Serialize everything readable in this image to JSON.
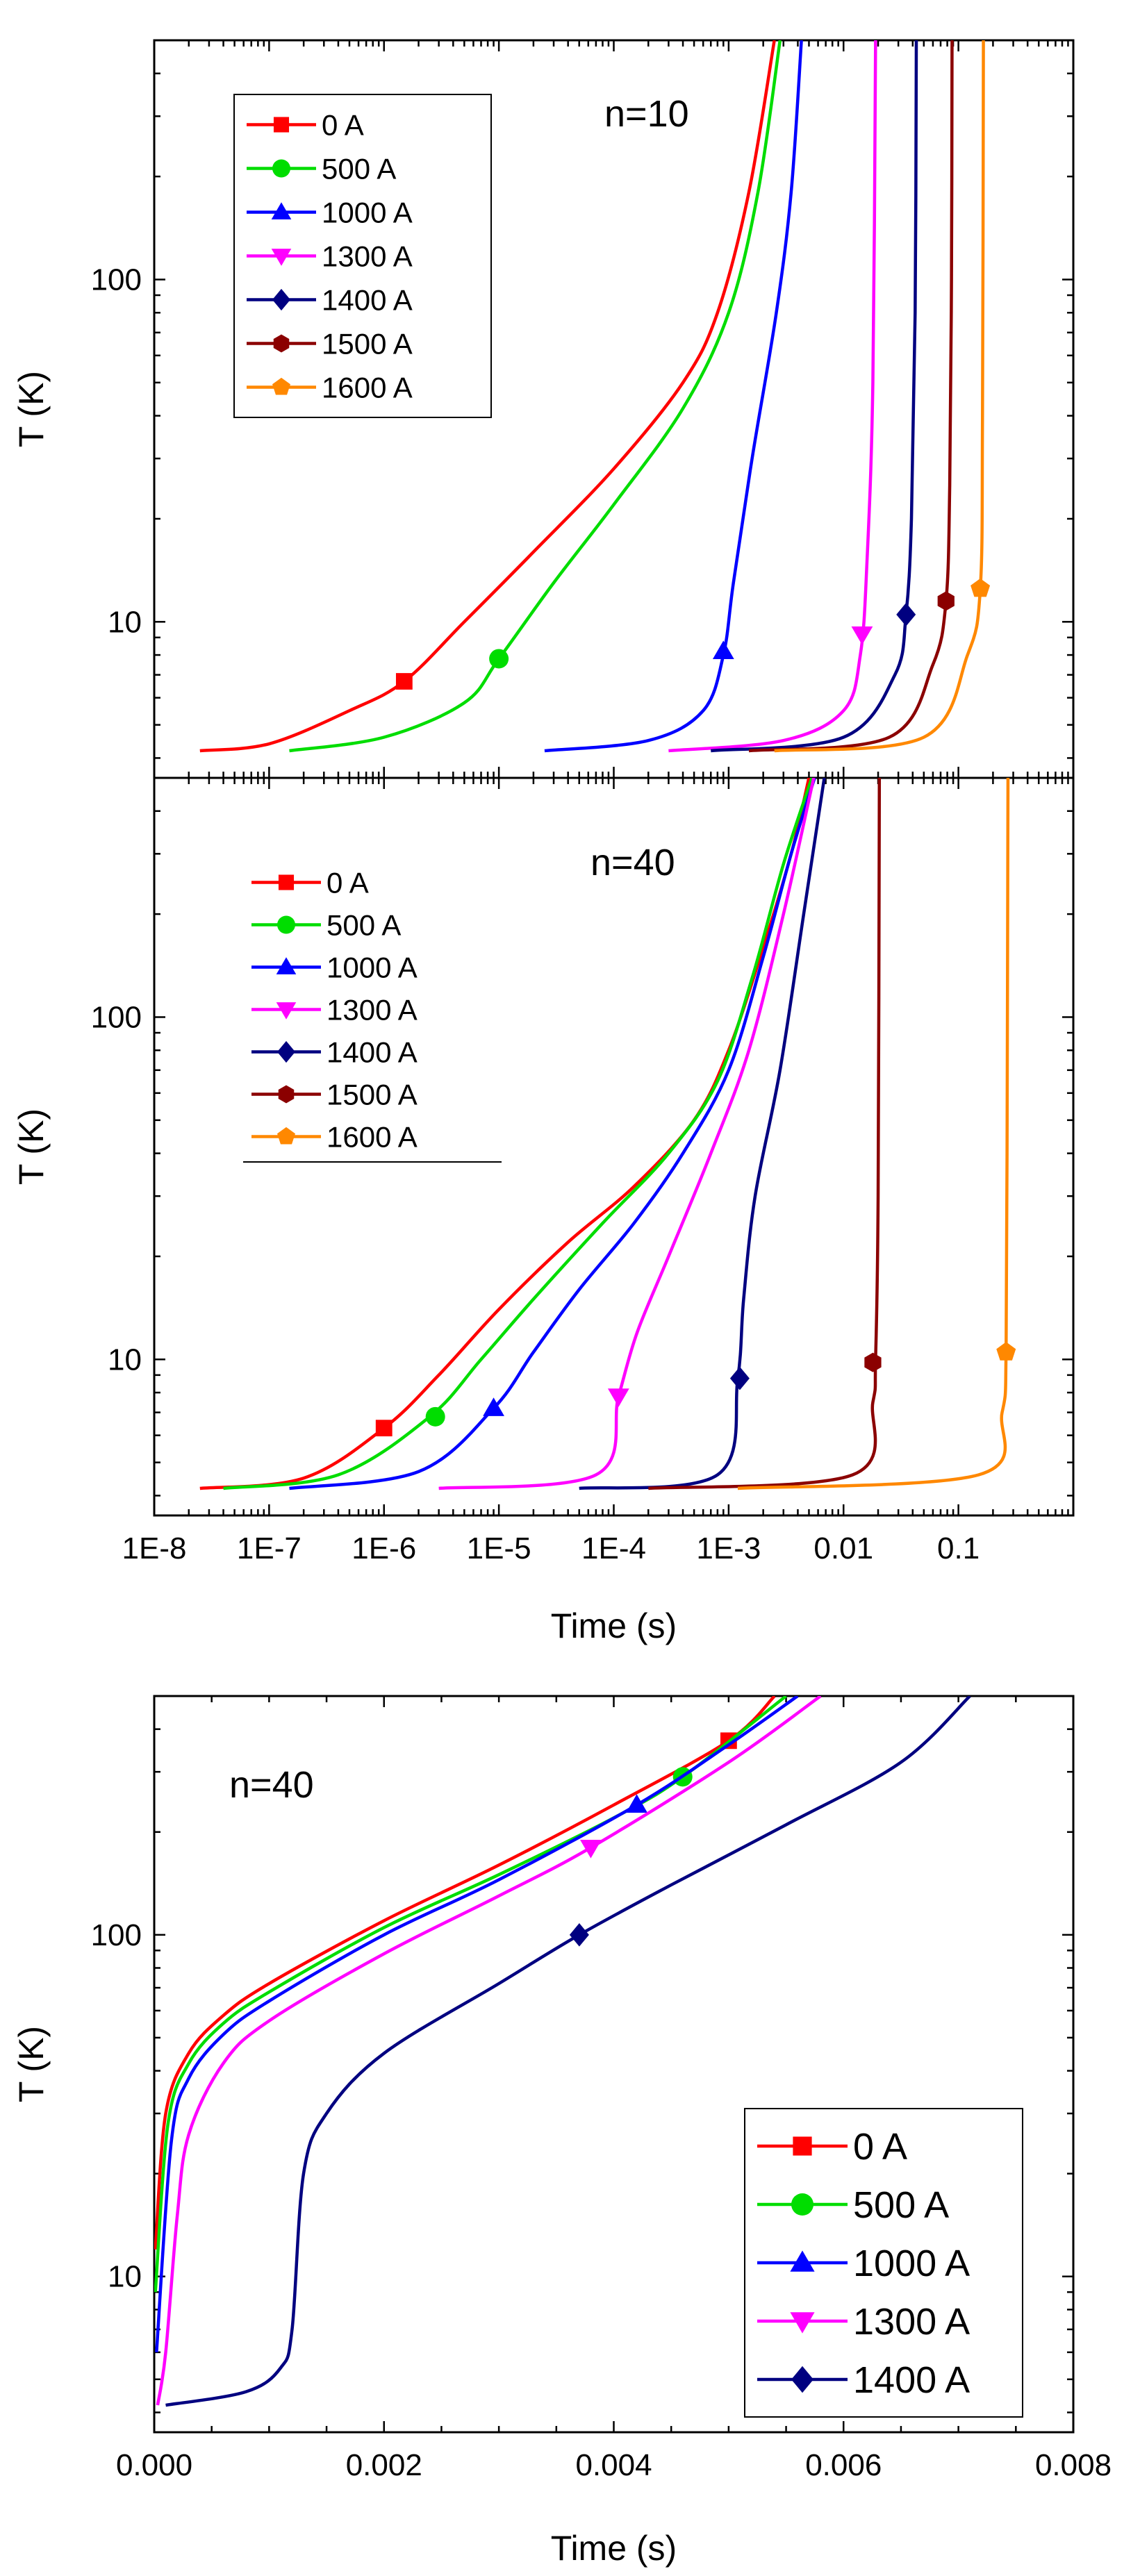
{
  "chart_data": [
    {
      "type": "line",
      "title": "",
      "annotation": "n=10",
      "xlabel": "",
      "ylabel": "T (K)",
      "xscale": "log",
      "yscale": "log",
      "xlim": [
        1e-08,
        1
      ],
      "ylim": [
        3.5,
        500
      ],
      "yticks": [
        {
          "v": 10,
          "label": "10"
        },
        {
          "v": 100,
          "label": "100"
        }
      ],
      "legend_position": "top-left",
      "series": [
        {
          "name": "0 A",
          "color": "#ff0000",
          "marker": "square",
          "points": [
            [
              2.5e-08,
              4.2
            ],
            [
              1e-07,
              4.4
            ],
            [
              5e-07,
              5.5
            ],
            [
              1.5e-06,
              6.7
            ],
            [
              5e-06,
              10
            ],
            [
              2e-05,
              16
            ],
            [
              0.0001,
              28
            ],
            [
              0.0004,
              50
            ],
            [
              0.0008,
              80
            ],
            [
              0.0015,
              180
            ],
            [
              0.0025,
              500
            ]
          ],
          "marker_at": [
            1.5e-06,
            6.7
          ]
        },
        {
          "name": "500 A",
          "color": "#00dd00",
          "marker": "circle",
          "points": [
            [
              1.5e-07,
              4.2
            ],
            [
              1e-06,
              4.6
            ],
            [
              5e-06,
              5.8
            ],
            [
              1e-05,
              7.8
            ],
            [
              3e-05,
              13
            ],
            [
              0.0001,
              22
            ],
            [
              0.0004,
              42
            ],
            [
              0.001,
              80
            ],
            [
              0.0018,
              180
            ],
            [
              0.0028,
              500
            ]
          ],
          "marker_at": [
            1e-05,
            7.8
          ]
        },
        {
          "name": "1000 A",
          "color": "#0000ff",
          "marker": "triangle-up",
          "points": [
            [
              2.5e-05,
              4.2
            ],
            [
              0.0002,
              4.5
            ],
            [
              0.0006,
              5.5
            ],
            [
              0.0009,
              8
            ],
            [
              0.0011,
              13
            ],
            [
              0.0016,
              30
            ],
            [
              0.0026,
              80
            ],
            [
              0.0035,
              180
            ],
            [
              0.0043,
              500
            ]
          ],
          "marker_at": [
            0.0009,
            8.2
          ]
        },
        {
          "name": "1300 A",
          "color": "#ff00ff",
          "marker": "triangle-down",
          "points": [
            [
              0.0003,
              4.2
            ],
            [
              0.003,
              4.5
            ],
            [
              0.01,
              5.5
            ],
            [
              0.014,
              8
            ],
            [
              0.016,
              15
            ],
            [
              0.018,
              50
            ],
            [
              0.019,
              500
            ]
          ],
          "marker_at": [
            0.0145,
            9.2
          ]
        },
        {
          "name": "1400 A",
          "color": "#000080",
          "marker": "diamond",
          "points": [
            [
              0.0007,
              4.2
            ],
            [
              0.01,
              4.6
            ],
            [
              0.028,
              7
            ],
            [
              0.035,
              10.5
            ],
            [
              0.039,
              20
            ],
            [
              0.042,
              80
            ],
            [
              0.043,
              500
            ]
          ],
          "marker_at": [
            0.035,
            10.5
          ]
        },
        {
          "name": "1500 A",
          "color": "#8b0000",
          "marker": "hexagon",
          "points": [
            [
              0.0015,
              4.2
            ],
            [
              0.025,
              4.6
            ],
            [
              0.06,
              7.5
            ],
            [
              0.078,
              11.5
            ],
            [
              0.084,
              25
            ],
            [
              0.087,
              100
            ],
            [
              0.088,
              500
            ]
          ],
          "marker_at": [
            0.078,
            11.5
          ]
        },
        {
          "name": "1600 A",
          "color": "#ff8800",
          "marker": "pentagon",
          "points": [
            [
              0.0025,
              4.2
            ],
            [
              0.05,
              4.6
            ],
            [
              0.12,
              8
            ],
            [
              0.155,
              12.5
            ],
            [
              0.162,
              40
            ],
            [
              0.165,
              500
            ]
          ],
          "marker_at": [
            0.155,
            12.5
          ]
        }
      ]
    },
    {
      "type": "line",
      "title": "",
      "annotation": "n=40",
      "xlabel": "Time (s)",
      "ylabel": "T (K)",
      "xscale": "log",
      "yscale": "log",
      "xlim": [
        1e-08,
        1
      ],
      "ylim": [
        3.5,
        500
      ],
      "xticks": [
        {
          "v": 1e-08,
          "label": "1E-8"
        },
        {
          "v": 1e-07,
          "label": "1E-7"
        },
        {
          "v": 1e-06,
          "label": "1E-6"
        },
        {
          "v": 1e-05,
          "label": "1E-5"
        },
        {
          "v": 0.0001,
          "label": "1E-4"
        },
        {
          "v": 0.001,
          "label": "1E-3"
        },
        {
          "v": 0.01,
          "label": "0.01"
        },
        {
          "v": 0.1,
          "label": "0.1"
        }
      ],
      "yticks": [
        {
          "v": 10,
          "label": "10"
        },
        {
          "v": 100,
          "label": "100"
        }
      ],
      "legend_position": "top-left",
      "series": [
        {
          "name": "0 A",
          "color": "#ff0000",
          "marker": "square",
          "points": [
            [
              2.5e-08,
              4.2
            ],
            [
              2e-07,
              4.5
            ],
            [
              1e-06,
              6.3
            ],
            [
              3e-06,
              9
            ],
            [
              1e-05,
              14
            ],
            [
              4e-05,
              22
            ],
            [
              0.00015,
              32
            ],
            [
              0.0005,
              50
            ],
            [
              0.001,
              80
            ],
            [
              0.002,
              160
            ],
            [
              0.0035,
              300
            ],
            [
              0.005,
              500
            ]
          ],
          "marker_at": [
            1e-06,
            6.3
          ]
        },
        {
          "name": "500 A",
          "color": "#00dd00",
          "marker": "circle",
          "points": [
            [
              4e-08,
              4.2
            ],
            [
              4e-07,
              4.6
            ],
            [
              2.5e-06,
              6.8
            ],
            [
              7e-06,
              10
            ],
            [
              2e-05,
              15
            ],
            [
              8e-05,
              25
            ],
            [
              0.0003,
              40
            ],
            [
              0.0008,
              65
            ],
            [
              0.0016,
              130
            ],
            [
              0.003,
              280
            ],
            [
              0.0053,
              500
            ]
          ],
          "marker_at": [
            2.8e-06,
            6.8
          ]
        },
        {
          "name": "1000 A",
          "color": "#0000ff",
          "marker": "triangle-up",
          "points": [
            [
              1.5e-07,
              4.2
            ],
            [
              2e-06,
              4.7
            ],
            [
              9e-06,
              7.2
            ],
            [
              2e-05,
              10.5
            ],
            [
              5e-05,
              16
            ],
            [
              0.00015,
              25
            ],
            [
              0.0004,
              40
            ],
            [
              0.001,
              70
            ],
            [
              0.002,
              150
            ],
            [
              0.0035,
              300
            ],
            [
              0.0056,
              500
            ]
          ],
          "marker_at": [
            9e-06,
            7.2
          ]
        },
        {
          "name": "1300 A",
          "color": "#ff00ff",
          "marker": "triangle-down",
          "points": [
            [
              3e-06,
              4.2
            ],
            [
              7e-05,
              4.6
            ],
            [
              0.00011,
              7.8
            ],
            [
              0.00016,
              12
            ],
            [
              0.0003,
              20
            ],
            [
              0.0007,
              40
            ],
            [
              0.0015,
              80
            ],
            [
              0.003,
              200
            ],
            [
              0.0055,
              500
            ]
          ],
          "marker_at": [
            0.00011,
            7.8
          ]
        },
        {
          "name": "1400 A",
          "color": "#000080",
          "marker": "diamond",
          "points": [
            [
              5e-05,
              4.2
            ],
            [
              0.0008,
              4.6
            ],
            [
              0.0012,
              8.8
            ],
            [
              0.00135,
              15
            ],
            [
              0.0017,
              30
            ],
            [
              0.0028,
              70
            ],
            [
              0.0045,
              200
            ],
            [
              0.0068,
              500
            ]
          ],
          "marker_at": [
            0.00125,
            8.8
          ]
        },
        {
          "name": "1500 A",
          "color": "#8b0000",
          "marker": "hexagon",
          "points": [
            [
              0.0002,
              4.2
            ],
            [
              0.012,
              4.6
            ],
            [
              0.018,
              7.5
            ],
            [
              0.019,
              10
            ],
            [
              0.02,
              30
            ],
            [
              0.0205,
              500
            ]
          ],
          "marker_at": [
            0.018,
            9.8
          ]
        },
        {
          "name": "1600 A",
          "color": "#ff8800",
          "marker": "pentagon",
          "points": [
            [
              0.0012,
              4.2
            ],
            [
              0.15,
              4.6
            ],
            [
              0.24,
              7
            ],
            [
              0.26,
              10.5
            ],
            [
              0.265,
              40
            ],
            [
              0.27,
              500
            ]
          ],
          "marker_at": [
            0.26,
            10.5
          ]
        }
      ]
    },
    {
      "type": "line",
      "title": "",
      "annotation": "n=40",
      "xlabel": "Time (s)",
      "ylabel": "T (K)",
      "xscale": "linear",
      "yscale": "log",
      "xlim": [
        0,
        0.008
      ],
      "ylim": [
        3.5,
        500
      ],
      "xticks": [
        {
          "v": 0,
          "label": "0.000"
        },
        {
          "v": 0.002,
          "label": "0.002"
        },
        {
          "v": 0.004,
          "label": "0.004"
        },
        {
          "v": 0.006,
          "label": "0.006"
        },
        {
          "v": 0.008,
          "label": "0.008"
        }
      ],
      "yticks": [
        {
          "v": 10,
          "label": "10"
        },
        {
          "v": 100,
          "label": "100"
        }
      ],
      "legend_position": "bottom-right",
      "series": [
        {
          "name": "0 A",
          "color": "#ff0000",
          "marker": "square",
          "points": [
            [
              1e-05,
              12
            ],
            [
              0.0001,
              30
            ],
            [
              0.0003,
              45
            ],
            [
              0.0006,
              58
            ],
            [
              0.001,
              72
            ],
            [
              0.002,
              110
            ],
            [
              0.003,
              160
            ],
            [
              0.004,
              240
            ],
            [
              0.005,
              370
            ],
            [
              0.0054,
              500
            ]
          ],
          "marker_at": [
            0.005,
            370
          ]
        },
        {
          "name": "500 A",
          "color": "#00dd00",
          "marker": "circle",
          "points": [
            [
              1e-05,
              9
            ],
            [
              0.00012,
              28
            ],
            [
              0.0003,
              42
            ],
            [
              0.0006,
              55
            ],
            [
              0.001,
              68
            ],
            [
              0.002,
              105
            ],
            [
              0.003,
              150
            ],
            [
              0.004,
              220
            ],
            [
              0.0046,
              290
            ],
            [
              0.0055,
              500
            ]
          ],
          "marker_at": [
            0.0046,
            290
          ]
        },
        {
          "name": "1000 A",
          "color": "#0000ff",
          "marker": "triangle-up",
          "points": [
            [
              2e-05,
              6
            ],
            [
              0.00015,
              25
            ],
            [
              0.0003,
              38
            ],
            [
              0.0006,
              51
            ],
            [
              0.001,
              64
            ],
            [
              0.002,
              100
            ],
            [
              0.003,
              145
            ],
            [
              0.0042,
              240
            ],
            [
              0.005,
              360
            ],
            [
              0.0056,
              500
            ]
          ],
          "marker_at": [
            0.0042,
            240
          ]
        },
        {
          "name": "1300 A",
          "color": "#ff00ff",
          "marker": "triangle-down",
          "points": [
            [
              3e-05,
              4.2
            ],
            [
              0.0001,
              6
            ],
            [
              0.0002,
              15
            ],
            [
              0.0003,
              26
            ],
            [
              0.0006,
              42
            ],
            [
              0.001,
              56
            ],
            [
              0.002,
              88
            ],
            [
              0.003,
              130
            ],
            [
              0.0038,
              180
            ],
            [
              0.005,
              320
            ],
            [
              0.0058,
              500
            ]
          ],
          "marker_at": [
            0.0038,
            180
          ]
        },
        {
          "name": "1400 A",
          "color": "#000080",
          "marker": "diamond",
          "points": [
            [
              0.0001,
              4.2
            ],
            [
              0.0008,
              4.6
            ],
            [
              0.0011,
              5.4
            ],
            [
              0.0012,
              7
            ],
            [
              0.0013,
              20
            ],
            [
              0.0015,
              30
            ],
            [
              0.002,
              45
            ],
            [
              0.003,
              72
            ],
            [
              0.0037,
              100
            ],
            [
              0.0045,
              140
            ],
            [
              0.0055,
              210
            ],
            [
              0.0065,
              320
            ],
            [
              0.0071,
              500
            ]
          ],
          "marker_at": [
            0.0037,
            100
          ]
        }
      ]
    }
  ]
}
